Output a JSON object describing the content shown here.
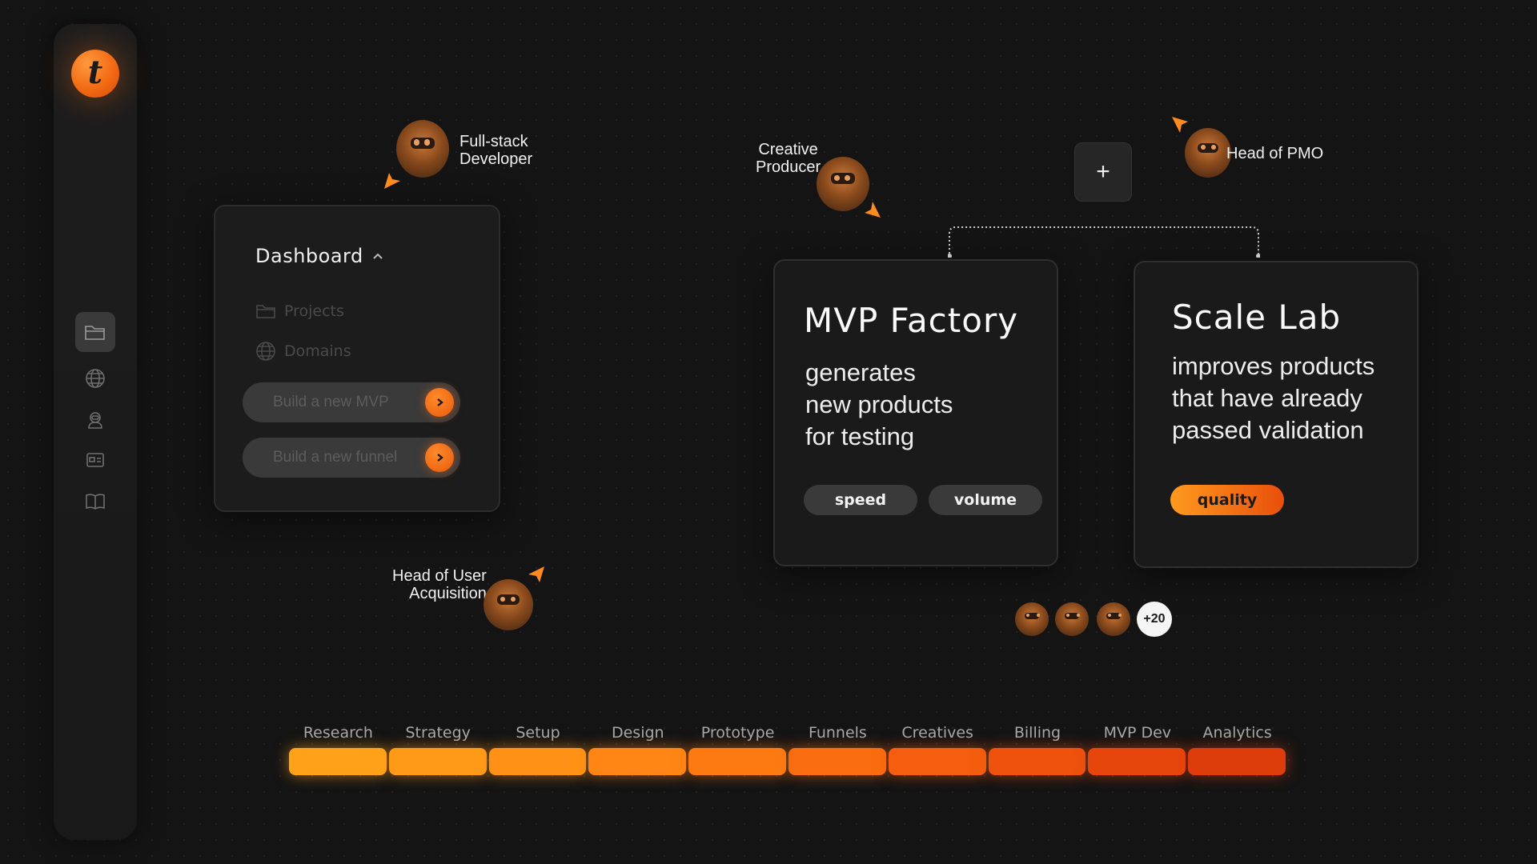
{
  "sidebar": {
    "logo_letter": "t",
    "icons": [
      "folder-icon",
      "globe-icon",
      "astronaut-icon",
      "card-icon",
      "book-icon"
    ]
  },
  "dashboard": {
    "title": "Dashboard",
    "items": [
      "Projects",
      "Domains"
    ],
    "buttons": [
      "Build a new MVP",
      "Build a new funnel"
    ]
  },
  "personas": {
    "fullstack": "Full-stack\nDeveloper",
    "creative": "Creative\nProducer",
    "pmo": "Head of PMO",
    "user_acq": "Head of User\nAcquisition"
  },
  "mvp_card": {
    "title": "MVP Factory",
    "desc": [
      "generates",
      "new products",
      "for testing"
    ],
    "tags": [
      "speed",
      "volume"
    ]
  },
  "scale_card": {
    "title": "Scale Lab",
    "desc": [
      "improves products",
      "that have already",
      "passed validation"
    ],
    "tags": [
      "quality"
    ]
  },
  "plus_button": "+",
  "team": {
    "more_count": "+20"
  },
  "timeline": {
    "stages": [
      "Research",
      "Strategy",
      "Setup",
      "Design",
      "Prototype",
      "Funnels",
      "Creatives",
      "Billing",
      "MVP Dev",
      "Analytics"
    ],
    "colors": [
      "#ffa21a",
      "#ff9a18",
      "#ff9216",
      "#ff8614",
      "#fd7a12",
      "#fa6c10",
      "#f45e0e",
      "#ee520d",
      "#e6460c",
      "#dd3c0b"
    ]
  }
}
